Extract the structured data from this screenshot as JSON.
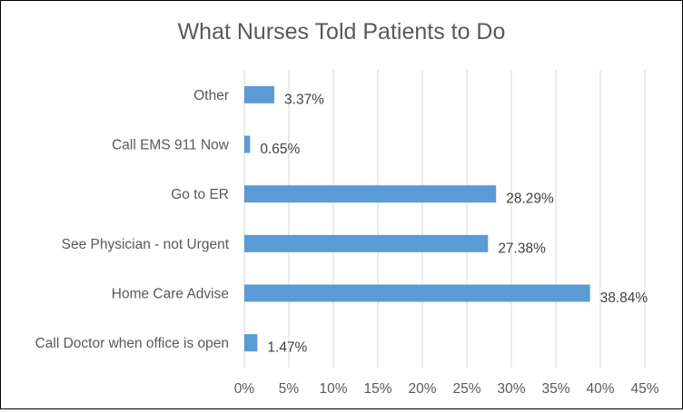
{
  "chart_data": {
    "type": "bar",
    "orientation": "horizontal",
    "title": "What Nurses Told Patients to Do",
    "xlabel": "",
    "ylabel": "",
    "categories": [
      "Other",
      "Call EMS 911 Now",
      "Go to ER",
      "See Physician - not Urgent",
      "Home Care Advise",
      "Call Doctor when office is open"
    ],
    "values": [
      3.37,
      0.65,
      28.29,
      27.38,
      38.84,
      1.47
    ],
    "data_labels": [
      "3.37%",
      "0.65%",
      "28.29%",
      "27.38%",
      "38.84%",
      "1.47%"
    ],
    "xlim": [
      0,
      45
    ],
    "x_ticks": [
      0,
      5,
      10,
      15,
      20,
      25,
      30,
      35,
      40,
      45
    ],
    "x_tick_labels": [
      "0%",
      "5%",
      "10%",
      "15%",
      "20%",
      "25%",
      "30%",
      "35%",
      "40%",
      "45%"
    ],
    "grid": true,
    "legend": "none",
    "bar_color": "#5b9bd5"
  }
}
